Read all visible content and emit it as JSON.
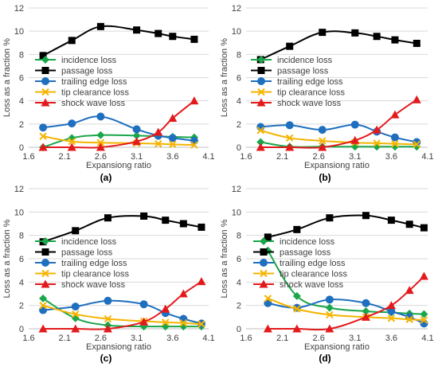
{
  "chart_data": [
    {
      "type": "line",
      "panel_label": "(a)",
      "xlabel": "Expansiong ratio",
      "ylabel": "Loss as a fraction %",
      "xlim": [
        1.6,
        4.1
      ],
      "ylim": [
        0,
        12
      ],
      "x_ticks": [
        "1.6",
        "2.1",
        "2.6",
        "3.1",
        "3.6",
        "4.1"
      ],
      "y_ticks": [
        "0",
        "2",
        "4",
        "6",
        "8",
        "10",
        "12"
      ],
      "legend_position": "center-left",
      "grid": "horizontal",
      "series": [
        {
          "name": "incidence loss",
          "color": "#1aa64a",
          "marker": "diamond",
          "x": [
            1.8,
            2.2,
            2.6,
            3.1,
            3.4,
            3.6,
            3.9
          ],
          "y": [
            0.0,
            0.8,
            1.05,
            1.0,
            0.95,
            0.9,
            0.85
          ]
        },
        {
          "name": "passage loss",
          "color": "#000000",
          "marker": "square",
          "x": [
            1.8,
            2.2,
            2.6,
            3.1,
            3.4,
            3.6,
            3.9
          ],
          "y": [
            7.9,
            9.2,
            10.4,
            10.1,
            9.8,
            9.55,
            9.3
          ]
        },
        {
          "name": "trailing edge loss",
          "color": "#1f6fbf",
          "marker": "circle",
          "x": [
            1.8,
            2.2,
            2.6,
            3.1,
            3.4,
            3.6,
            3.9
          ],
          "y": [
            1.7,
            2.05,
            2.65,
            1.55,
            1.0,
            0.8,
            0.55
          ]
        },
        {
          "name": "tip clearance loss",
          "color": "#f5b400",
          "marker": "x",
          "x": [
            1.8,
            2.2,
            2.6,
            3.1,
            3.4,
            3.6,
            3.9
          ],
          "y": [
            0.95,
            0.5,
            0.4,
            0.35,
            0.3,
            0.25,
            0.2
          ]
        },
        {
          "name": "shock wave loss",
          "color": "#e31a1c",
          "marker": "triangle",
          "x": [
            1.8,
            2.2,
            2.6,
            3.1,
            3.4,
            3.6,
            3.9
          ],
          "y": [
            0.0,
            0.0,
            0.0,
            0.5,
            1.3,
            2.5,
            4.0
          ]
        }
      ]
    },
    {
      "type": "line",
      "panel_label": "(b)",
      "xlabel": "Expansiong ratio",
      "ylabel": "Loss as a fraction %",
      "xlim": [
        1.6,
        4.1
      ],
      "ylim": [
        0,
        12
      ],
      "x_ticks": [
        "1.6",
        "2.1",
        "2.6",
        "3.1",
        "3.6",
        "4.1"
      ],
      "y_ticks": [
        "0",
        "2",
        "4",
        "6",
        "8",
        "10",
        "12"
      ],
      "legend_position": "center-left",
      "grid": "horizontal",
      "series": [
        {
          "name": "incidence loss",
          "color": "#1aa64a",
          "marker": "diamond",
          "x": [
            1.8,
            2.2,
            2.65,
            3.1,
            3.4,
            3.65,
            3.95
          ],
          "y": [
            0.45,
            0.05,
            0.05,
            0.05,
            0.05,
            0.05,
            0.05
          ]
        },
        {
          "name": "passage loss",
          "color": "#000000",
          "marker": "square",
          "x": [
            1.8,
            2.2,
            2.65,
            3.1,
            3.4,
            3.65,
            3.95
          ],
          "y": [
            7.55,
            8.7,
            9.9,
            9.85,
            9.55,
            9.25,
            8.95
          ]
        },
        {
          "name": "trailing edge loss",
          "color": "#1f6fbf",
          "marker": "circle",
          "x": [
            1.8,
            2.2,
            2.65,
            3.1,
            3.4,
            3.65,
            3.95
          ],
          "y": [
            1.75,
            1.9,
            1.5,
            1.95,
            1.35,
            0.85,
            0.45
          ]
        },
        {
          "name": "tip clearance loss",
          "color": "#f5b400",
          "marker": "x",
          "x": [
            1.8,
            2.2,
            2.65,
            3.1,
            3.4,
            3.65,
            3.95
          ],
          "y": [
            1.45,
            0.8,
            0.55,
            0.4,
            0.35,
            0.3,
            0.25
          ]
        },
        {
          "name": "shock wave loss",
          "color": "#e31a1c",
          "marker": "triangle",
          "x": [
            1.8,
            2.2,
            2.65,
            3.1,
            3.4,
            3.65,
            3.95
          ],
          "y": [
            0.0,
            0.0,
            0.0,
            0.6,
            1.5,
            2.8,
            4.1
          ]
        }
      ]
    },
    {
      "type": "line",
      "panel_label": "(c)",
      "xlabel": "Expansiong ratio",
      "ylabel": "Loss as a fraction %",
      "xlim": [
        1.6,
        4.1
      ],
      "ylim": [
        0,
        12
      ],
      "x_ticks": [
        "1.6",
        "2.1",
        "2.6",
        "3.1",
        "3.6",
        "4.1"
      ],
      "y_ticks": [
        "0",
        "2",
        "4",
        "6",
        "8",
        "10",
        "12"
      ],
      "legend_position": "center-left",
      "grid": "horizontal",
      "series": [
        {
          "name": "incidence loss",
          "color": "#1aa64a",
          "marker": "diamond",
          "x": [
            1.8,
            2.25,
            2.7,
            3.2,
            3.5,
            3.75,
            4.0
          ],
          "y": [
            2.6,
            0.9,
            0.3,
            0.2,
            0.2,
            0.2,
            0.2
          ]
        },
        {
          "name": "passage loss",
          "color": "#000000",
          "marker": "square",
          "x": [
            1.8,
            2.25,
            2.7,
            3.2,
            3.5,
            3.75,
            4.0
          ],
          "y": [
            7.45,
            8.4,
            9.5,
            9.65,
            9.3,
            9.0,
            8.7
          ]
        },
        {
          "name": "trailing edge loss",
          "color": "#1f6fbf",
          "marker": "circle",
          "x": [
            1.8,
            2.25,
            2.7,
            3.2,
            3.5,
            3.75,
            4.0
          ],
          "y": [
            1.6,
            1.9,
            2.4,
            2.1,
            1.35,
            0.85,
            0.45
          ]
        },
        {
          "name": "tip clearance loss",
          "color": "#f5b400",
          "marker": "x",
          "x": [
            1.8,
            2.25,
            2.7,
            3.2,
            3.5,
            3.75,
            4.0
          ],
          "y": [
            2.0,
            1.25,
            0.85,
            0.65,
            0.55,
            0.5,
            0.4
          ]
        },
        {
          "name": "shock wave loss",
          "color": "#e31a1c",
          "marker": "triangle",
          "x": [
            1.8,
            2.25,
            2.7,
            3.2,
            3.5,
            3.75,
            4.0
          ],
          "y": [
            0.0,
            0.0,
            0.0,
            0.6,
            1.7,
            3.0,
            4.05
          ]
        }
      ]
    },
    {
      "type": "line",
      "panel_label": "(d)",
      "xlabel": "Expansiong ratio",
      "ylabel": "Loss as a fraction %",
      "xlim": [
        1.6,
        4.1
      ],
      "ylim": [
        0,
        12
      ],
      "x_ticks": [
        "1.6",
        "2.1",
        "2.6",
        "3.1",
        "3.6",
        "4.1"
      ],
      "y_ticks": [
        "0",
        "2",
        "4",
        "6",
        "8",
        "10",
        "12"
      ],
      "legend_position": "center-left",
      "grid": "horizontal",
      "series": [
        {
          "name": "incidence loss",
          "color": "#1aa64a",
          "marker": "diamond",
          "x": [
            1.9,
            2.3,
            2.75,
            3.25,
            3.6,
            3.85,
            4.05
          ],
          "y": [
            6.7,
            2.8,
            1.8,
            1.5,
            1.4,
            1.3,
            1.25
          ]
        },
        {
          "name": "passage loss",
          "color": "#000000",
          "marker": "square",
          "x": [
            1.9,
            2.3,
            2.75,
            3.25,
            3.6,
            3.85,
            4.05
          ],
          "y": [
            7.85,
            8.5,
            9.5,
            9.7,
            9.3,
            8.95,
            8.65
          ]
        },
        {
          "name": "trailing edge loss",
          "color": "#1f6fbf",
          "marker": "circle",
          "x": [
            1.9,
            2.3,
            2.75,
            3.25,
            3.6,
            3.85,
            4.05
          ],
          "y": [
            2.2,
            1.8,
            2.5,
            2.2,
            1.5,
            1.0,
            0.45
          ]
        },
        {
          "name": "tip clearance loss",
          "color": "#f5b400",
          "marker": "x",
          "x": [
            1.9,
            2.3,
            2.75,
            3.25,
            3.6,
            3.85,
            4.05
          ],
          "y": [
            2.6,
            1.7,
            1.2,
            1.0,
            0.9,
            0.8,
            0.75
          ]
        },
        {
          "name": "shock wave loss",
          "color": "#e31a1c",
          "marker": "triangle",
          "x": [
            1.9,
            2.3,
            2.75,
            3.25,
            3.6,
            3.85,
            4.05
          ],
          "y": [
            0.0,
            0.0,
            0.0,
            1.0,
            2.0,
            3.3,
            4.5
          ]
        }
      ]
    }
  ]
}
